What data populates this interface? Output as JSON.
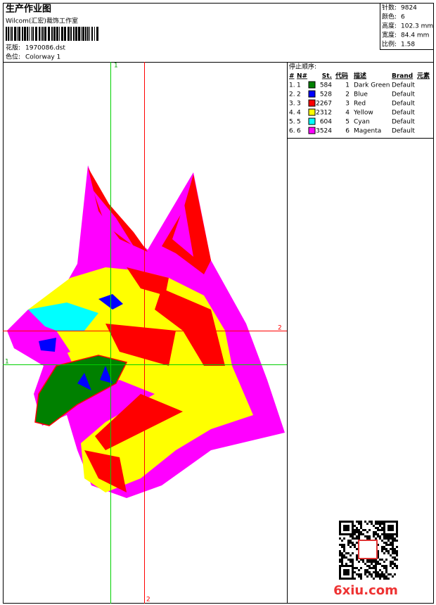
{
  "header": {
    "title": "生产作业图",
    "studio": "Wilcom(汇宏)裁饰工作室",
    "design_label": "花版:",
    "design": "1970086.dst",
    "colorway_label": "色位:",
    "colorway": "Colorway 1"
  },
  "stats": [
    {
      "label": "针数:",
      "value": "9824"
    },
    {
      "label": "颜色:",
      "value": "6"
    },
    {
      "label": "高度:",
      "value": "102.3 mm"
    },
    {
      "label": "宽度:",
      "value": "84.4 mm"
    },
    {
      "label": "比例:",
      "value": "1.58"
    }
  ],
  "table": {
    "title": "停止顺序:",
    "columns": [
      "#",
      "N#",
      "St.",
      "代码",
      "描述",
      "Brand",
      "元素"
    ],
    "rows": [
      {
        "num": "1.",
        "needle": "1",
        "color": "#008000",
        "stitches": "584",
        "code": "1",
        "desc": "Dark Green",
        "brand": "Default"
      },
      {
        "num": "2.",
        "needle": "2",
        "color": "#0000ff",
        "stitches": "528",
        "code": "2",
        "desc": "Blue",
        "brand": "Default"
      },
      {
        "num": "3.",
        "needle": "3",
        "color": "#ff0000",
        "stitches": "2267",
        "code": "3",
        "desc": "Red",
        "brand": "Default"
      },
      {
        "num": "4.",
        "needle": "4",
        "color": "#ffff00",
        "stitches": "2312",
        "code": "4",
        "desc": "Yellow",
        "brand": "Default"
      },
      {
        "num": "5.",
        "needle": "5",
        "color": "#00ffff",
        "stitches": "604",
        "code": "5",
        "desc": "Cyan",
        "brand": "Default"
      },
      {
        "num": "6.",
        "needle": "6",
        "color": "#ff00ff",
        "stitches": "3524",
        "code": "6",
        "desc": "Magenta",
        "brand": "Default"
      }
    ]
  },
  "guides": {
    "v_green": "1",
    "v_red": "2",
    "h_red": "2",
    "h_green": "1"
  },
  "watermark": "6xiu.com"
}
